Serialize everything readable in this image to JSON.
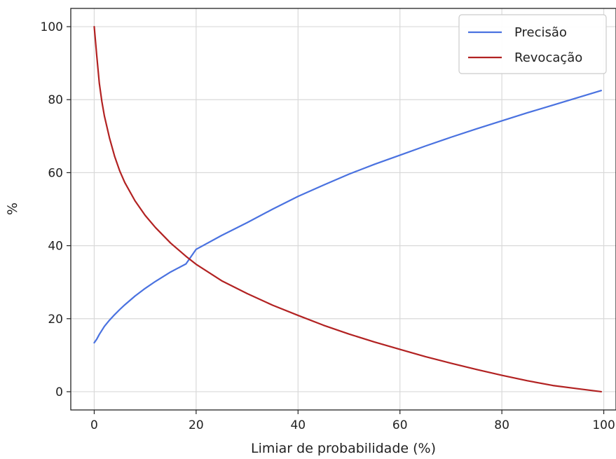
{
  "chart_data": {
    "type": "line",
    "xlabel": "Limiar de probabilidade (%)",
    "ylabel": "%",
    "xlim": [
      -4.6,
      102.4
    ],
    "ylim": [
      -5,
      105
    ],
    "xticks": [
      0,
      20,
      40,
      60,
      80,
      100
    ],
    "yticks": [
      0,
      20,
      40,
      60,
      80,
      100
    ],
    "grid": true,
    "legend_position": "top-right",
    "series": [
      {
        "name": "Precisão",
        "color": "#4a72e0",
        "x": [
          0,
          0.5,
          1,
          2,
          3,
          4,
          5,
          6,
          8,
          10,
          12,
          15,
          18,
          20,
          25,
          30,
          35,
          40,
          45,
          50,
          55,
          60,
          65,
          70,
          75,
          80,
          85,
          90,
          95,
          99.5
        ],
        "y": [
          13.4,
          14.4,
          15.7,
          17.9,
          19.6,
          21.1,
          22.5,
          23.8,
          26.2,
          28.3,
          30.2,
          32.8,
          35.0,
          39.0,
          42.8,
          46.3,
          50.0,
          53.5,
          56.6,
          59.6,
          62.3,
          64.8,
          67.3,
          69.7,
          72.0,
          74.2,
          76.4,
          78.5,
          80.6,
          82.5
        ]
      },
      {
        "name": "Revocação",
        "color": "#b22222",
        "x": [
          0,
          0.5,
          1,
          1.5,
          2,
          3,
          4,
          5,
          6,
          8,
          10,
          12,
          15,
          18,
          20,
          25,
          30,
          35,
          40,
          45,
          50,
          55,
          60,
          65,
          70,
          75,
          80,
          85,
          90,
          95,
          99.5
        ],
        "y": [
          100,
          92,
          84.5,
          79.5,
          75.5,
          69.5,
          64.5,
          60.5,
          57.3,
          52.3,
          48.3,
          45.0,
          40.7,
          37.1,
          34.9,
          30.4,
          26.9,
          23.7,
          20.9,
          18.2,
          15.8,
          13.6,
          11.6,
          9.6,
          7.8,
          6.1,
          4.5,
          3.0,
          1.7,
          0.8,
          0.0
        ]
      }
    ]
  }
}
